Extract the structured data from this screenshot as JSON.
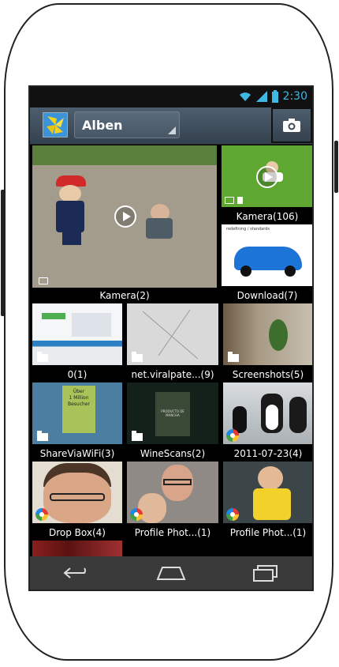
{
  "status": {
    "time": "2:30"
  },
  "appbar": {
    "dropdown_label": "Alben"
  },
  "albums": [
    {
      "label": "Kamera(2)"
    },
    {
      "label": "Kamera(106)"
    },
    {
      "label": "Download(7)"
    },
    {
      "label": "0(1)"
    },
    {
      "label": "net.viralpate...(9)"
    },
    {
      "label": "Screenshots(5)"
    },
    {
      "label": "ShareViaWiFi(3)"
    },
    {
      "label": "WineScans(2)"
    },
    {
      "label": "2011-07-23(4)"
    },
    {
      "label": "Drop Box(4)"
    },
    {
      "label": "Profile Phot...(1)"
    },
    {
      "label": "Profile Phot...(1)"
    }
  ],
  "thumb_text": {
    "download_header": "redefining / standards",
    "sharewifi_line1": "Über",
    "sharewifi_line2": "1 Million",
    "sharewifi_line3": "Besucher",
    "wine_text": "PRODUCTO DE MANCHA"
  },
  "colors": {
    "accent": "#3fb8e4",
    "appbar": "#4d5e6e"
  }
}
